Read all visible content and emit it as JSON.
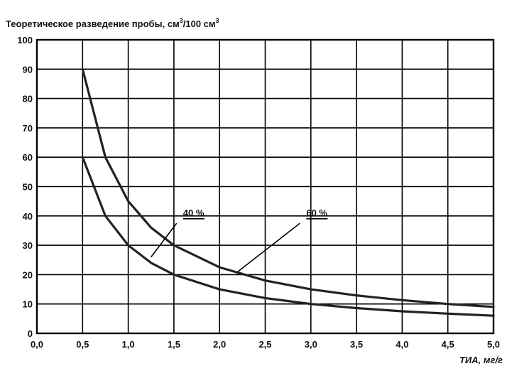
{
  "chart_data": {
    "type": "line",
    "ylabel_main": "Теоретическое разведение пробы, см",
    "ylabel_sup1": "3",
    "ylabel_mid": "/100 см",
    "ylabel_sup2": "3",
    "xlabel": "ТИА, мг/г",
    "xlim": [
      0,
      5
    ],
    "ylim": [
      0,
      100
    ],
    "x_ticks": [
      0,
      0.5,
      1,
      1.5,
      2,
      2.5,
      3,
      3.5,
      4,
      4.5,
      5
    ],
    "x_tick_labels": [
      "0,0",
      "0,5",
      "1,0",
      "1,5",
      "2,0",
      "2,5",
      "3,0",
      "3,5",
      "4,0",
      "4,5",
      "5,0"
    ],
    "y_ticks": [
      0,
      10,
      20,
      30,
      40,
      50,
      60,
      70,
      80,
      90,
      100
    ],
    "y_tick_labels": [
      "0",
      "10",
      "20",
      "30",
      "40",
      "50",
      "60",
      "70",
      "80",
      "90",
      "100"
    ],
    "grid": true,
    "series": [
      {
        "name": "40 %",
        "x": [
          0.5,
          0.75,
          1.0,
          1.25,
          1.5,
          2.0,
          2.5,
          3.0,
          3.5,
          4.0,
          4.5,
          5.0
        ],
        "y": [
          60,
          40,
          30,
          24,
          20,
          15,
          12,
          10,
          8.6,
          7.5,
          6.7,
          6
        ],
        "label_pos": {
          "x": 1.6,
          "y": 40
        },
        "leader_from": {
          "x": 1.53,
          "y": 37.5
        },
        "leader_to": {
          "x": 1.25,
          "y": 26
        }
      },
      {
        "name": "60 %",
        "x": [
          0.5,
          0.75,
          1.0,
          1.25,
          1.5,
          2.0,
          2.5,
          3.0,
          3.5,
          4.0,
          4.5,
          5.0
        ],
        "y": [
          90,
          60,
          45,
          36,
          30,
          22.5,
          18,
          15,
          12.9,
          11.3,
          10,
          9
        ],
        "label_pos": {
          "x": 2.95,
          "y": 40
        },
        "leader_from": {
          "x": 2.88,
          "y": 37.5
        },
        "leader_to": {
          "x": 2.2,
          "y": 21
        }
      }
    ]
  }
}
